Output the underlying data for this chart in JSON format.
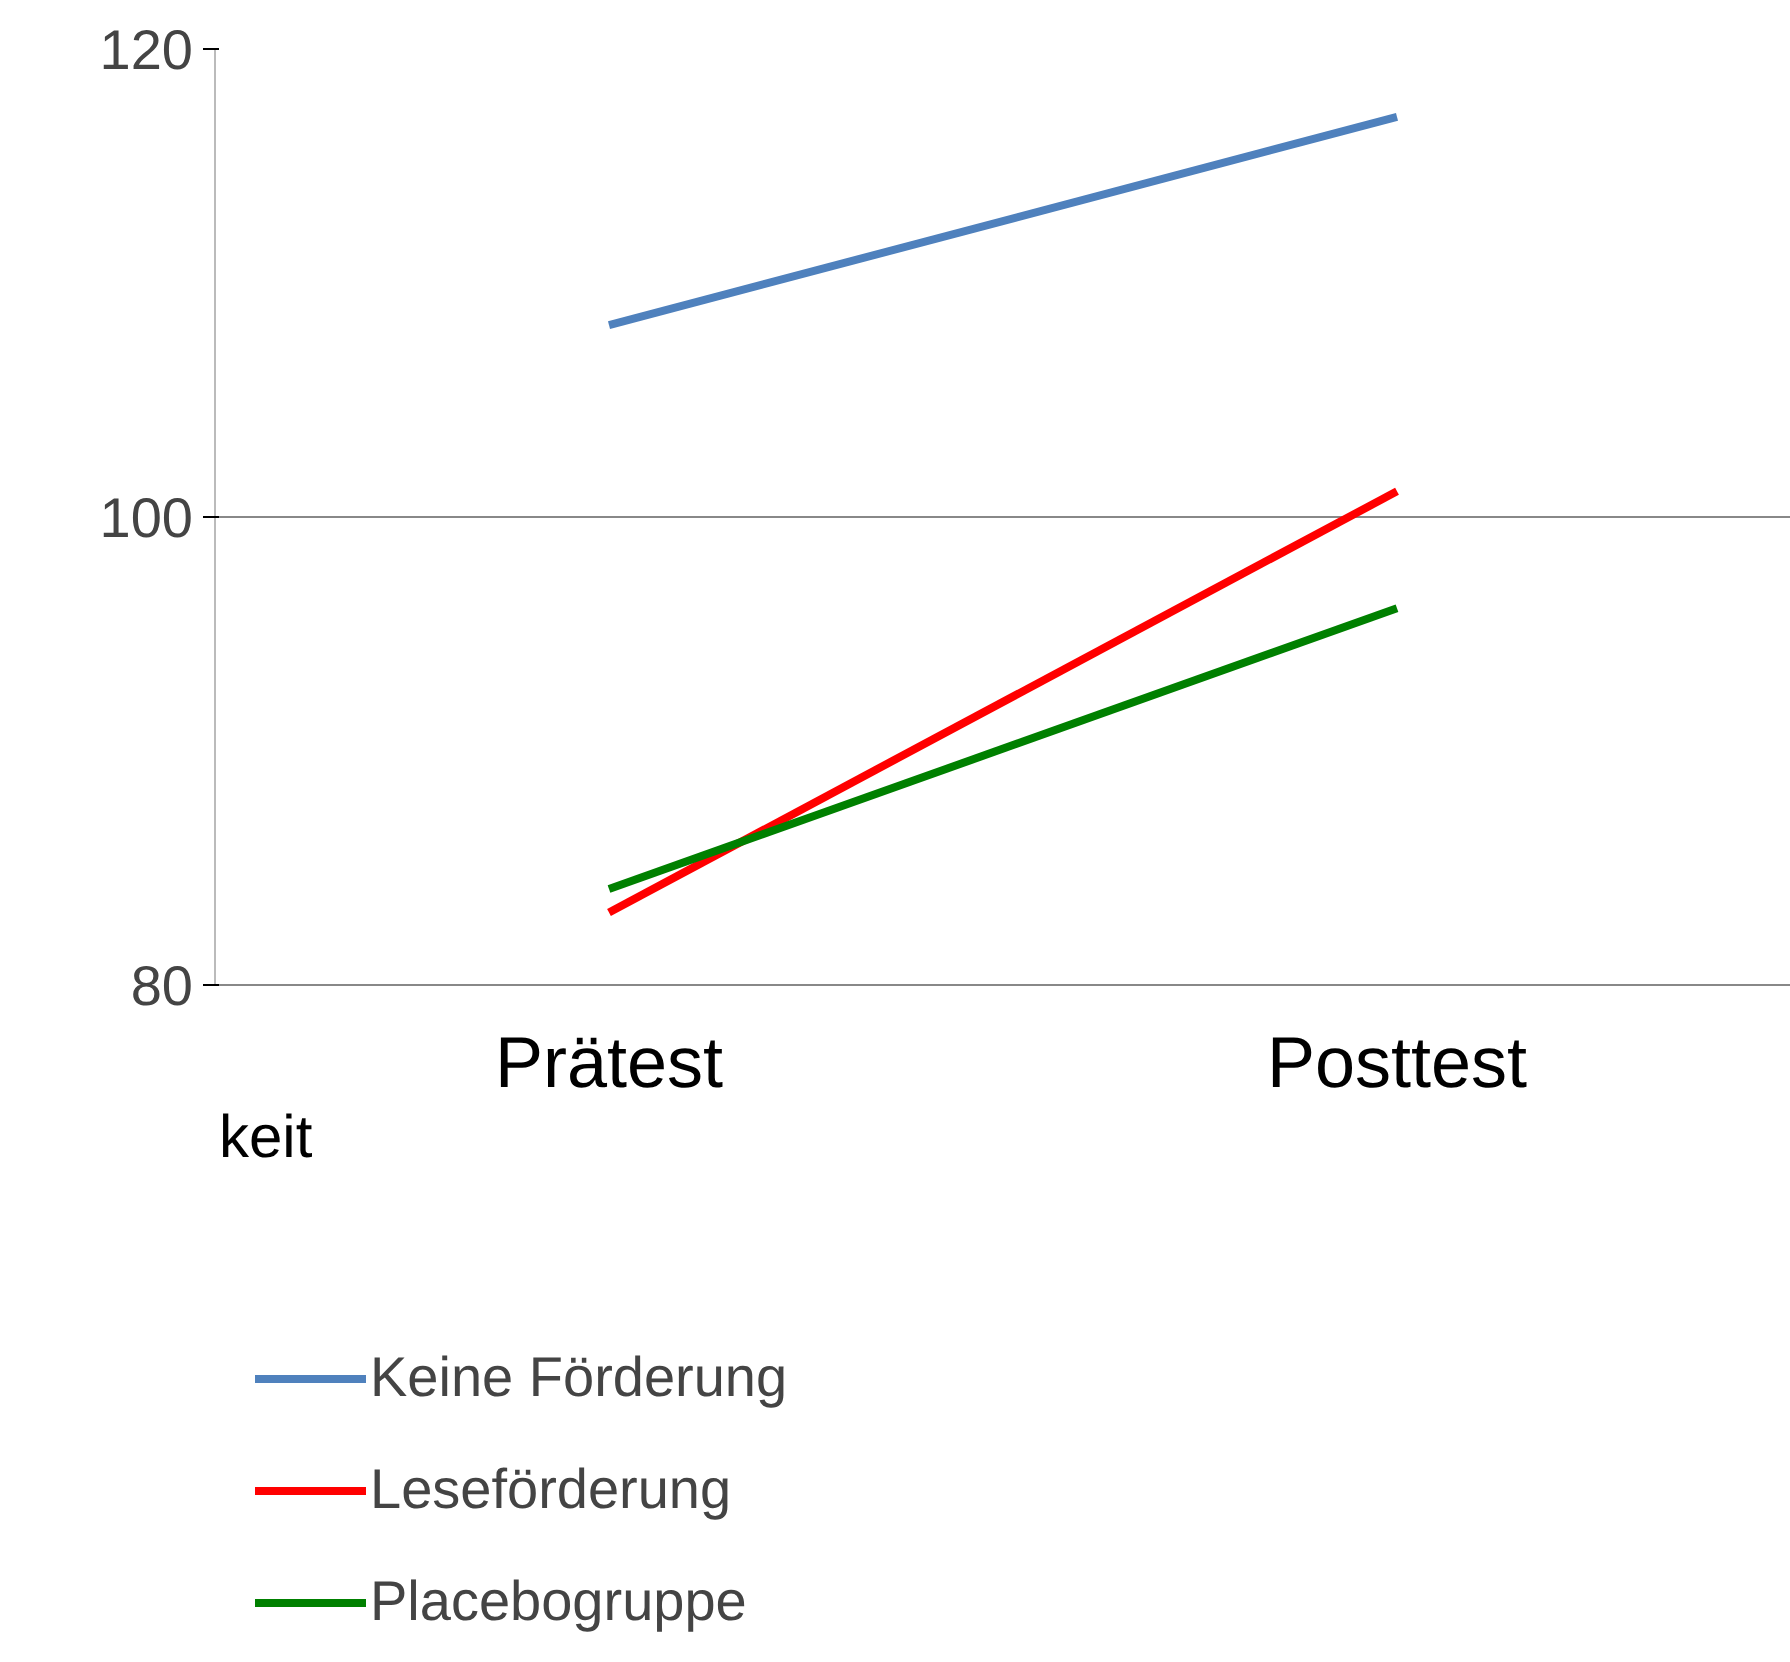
{
  "chart_data": {
    "type": "line",
    "categories": [
      "Prätest",
      "Posttest"
    ],
    "series": [
      {
        "name": "Keine Förderung",
        "color": "#4f81bd",
        "values": [
          108.2,
          117.1
        ]
      },
      {
        "name": "Leseförderung",
        "color": "#ff0000",
        "values": [
          83.1,
          101.1
        ]
      },
      {
        "name": "Placebogruppe",
        "color": "#008000",
        "values": [
          84.1,
          96.1
        ]
      }
    ],
    "ylim": [
      80,
      120
    ],
    "yticks": [
      80,
      100,
      120
    ],
    "grid": "y",
    "legend": "bottom",
    "marker": "none",
    "annotations": [
      "keit"
    ]
  }
}
